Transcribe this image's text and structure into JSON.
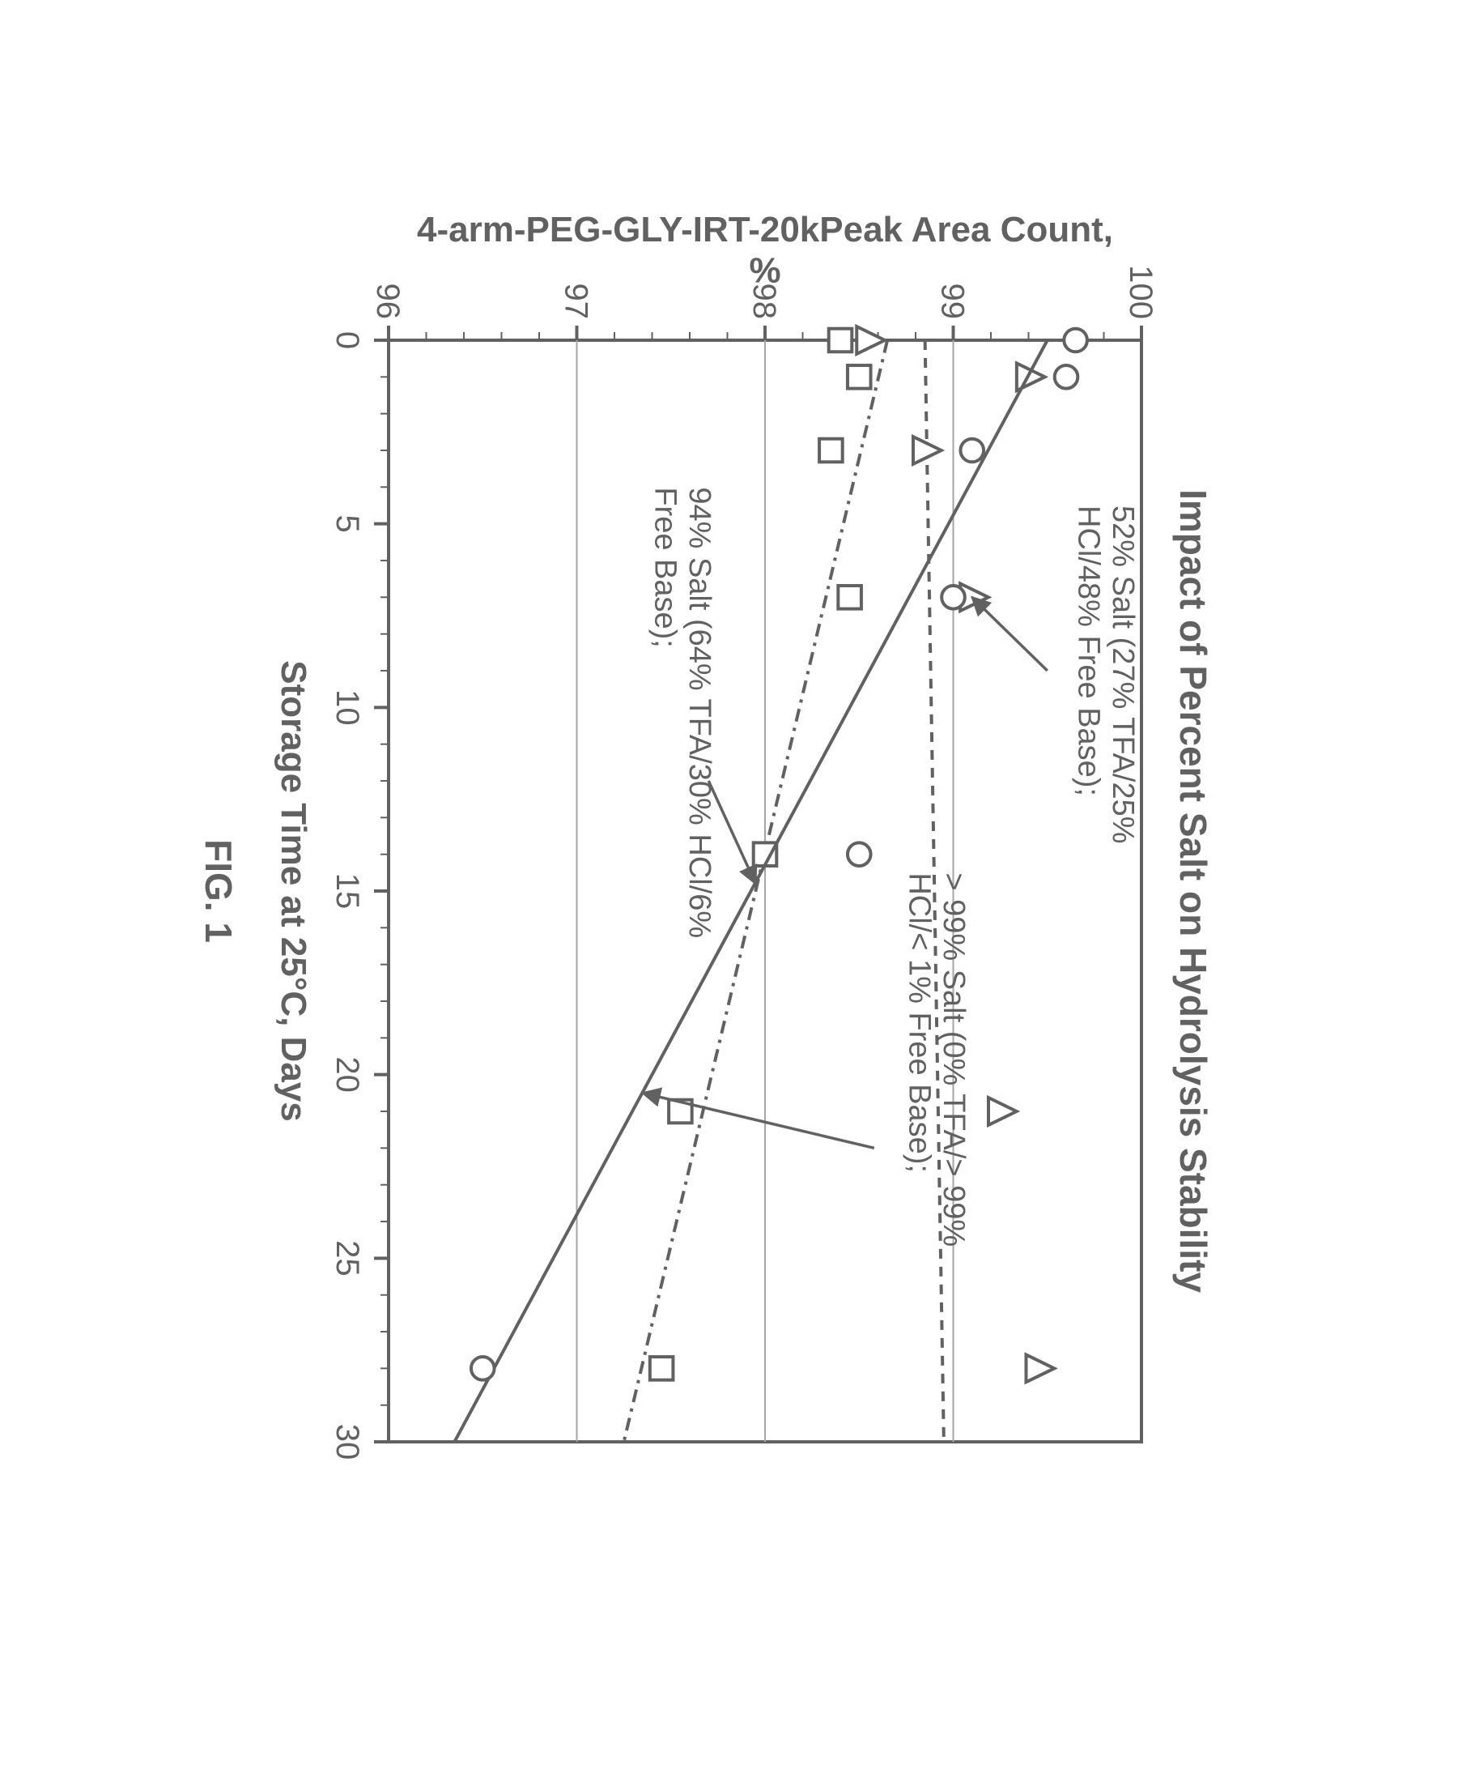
{
  "figure_label": "FIG. 1",
  "chart": {
    "type": "scatter",
    "rotation_deg": 90,
    "title": "Impact of Percent Salt on Hydrolysis Stability",
    "xlabel": "Storage Time at 25°C, Days",
    "ylabel": "4-arm-PEG-GLY-IRT-20kPeak Area Count, %",
    "xlim": [
      0,
      30
    ],
    "ylim": [
      96,
      100
    ],
    "xticks": [
      0,
      5,
      10,
      15,
      20,
      25,
      30
    ],
    "xtick_minor_step": 1,
    "yticks": [
      96,
      97,
      98,
      99,
      100
    ],
    "ytick_minor_step": 0.2,
    "grid_lines_y": [
      96,
      97,
      98,
      99,
      100
    ],
    "background_color": "#ffffff",
    "axis_color": "#616161",
    "grid_color": "#a5a5a5",
    "text_color": "#616161",
    "title_fontsize": 46,
    "label_fontsize": 44,
    "tick_fontsize": 40,
    "anno_fontsize": 38,
    "marker_size": 26,
    "marker_stroke": 4,
    "line_width": 4,
    "series": [
      {
        "id": "salt52",
        "marker": "triangle",
        "line_dash": "12 10",
        "color": "#616161",
        "points": [
          {
            "x": 0,
            "y": 98.55
          },
          {
            "x": 1,
            "y": 99.4
          },
          {
            "x": 3,
            "y": 98.85
          },
          {
            "x": 7,
            "y": 99.1
          },
          {
            "x": 21,
            "y": 99.25
          },
          {
            "x": 28,
            "y": 99.45
          }
        ],
        "fit_line": {
          "x0": 0,
          "y0": 98.85,
          "x1": 30,
          "y1": 98.95
        },
        "annotation": "52% Salt (27% TFA/25% HCl/48% Free Base);",
        "anno_xy": [
          4.5,
          99.85
        ],
        "arrow": {
          "from": [
            9,
            99.5
          ],
          "to": [
            7,
            99.1
          ]
        }
      },
      {
        "id": "salt94",
        "marker": "square",
        "line_dash": "16 8 4 8",
        "color": "#616161",
        "points": [
          {
            "x": 0,
            "y": 98.4
          },
          {
            "x": 1,
            "y": 98.5
          },
          {
            "x": 3,
            "y": 98.35
          },
          {
            "x": 7,
            "y": 98.45
          },
          {
            "x": 14,
            "y": 98.0
          },
          {
            "x": 21,
            "y": 97.55
          },
          {
            "x": 28,
            "y": 97.45
          }
        ],
        "fit_line": {
          "x0": 0,
          "y0": 98.65,
          "x1": 30,
          "y1": 97.25
        },
        "annotation": "94% Salt (64% TFA/30% HCl/6% Free Base);",
        "anno_xy": [
          4,
          97.6
        ],
        "arrow": {
          "from": [
            12,
            97.7
          ],
          "to": [
            14.8,
            97.95
          ]
        }
      },
      {
        "id": "salt99",
        "marker": "circle",
        "line_dash": "none",
        "color": "#616161",
        "points": [
          {
            "x": 0,
            "y": 99.65
          },
          {
            "x": 1,
            "y": 99.6
          },
          {
            "x": 3,
            "y": 99.1
          },
          {
            "x": 7,
            "y": 99.0
          },
          {
            "x": 14,
            "y": 98.5
          },
          {
            "x": 28,
            "y": 96.5
          }
        ],
        "fit_line": {
          "x0": 0,
          "y0": 99.5,
          "x1": 30,
          "y1": 96.35
        },
        "annotation": "> 99% Salt (0% TFA/> 99% HCl/< 1% Free Base);",
        "anno_xy": [
          14.5,
          98.95
        ],
        "arrow": {
          "from": [
            22,
            98.58
          ],
          "to": [
            20.5,
            97.35
          ]
        }
      }
    ]
  }
}
